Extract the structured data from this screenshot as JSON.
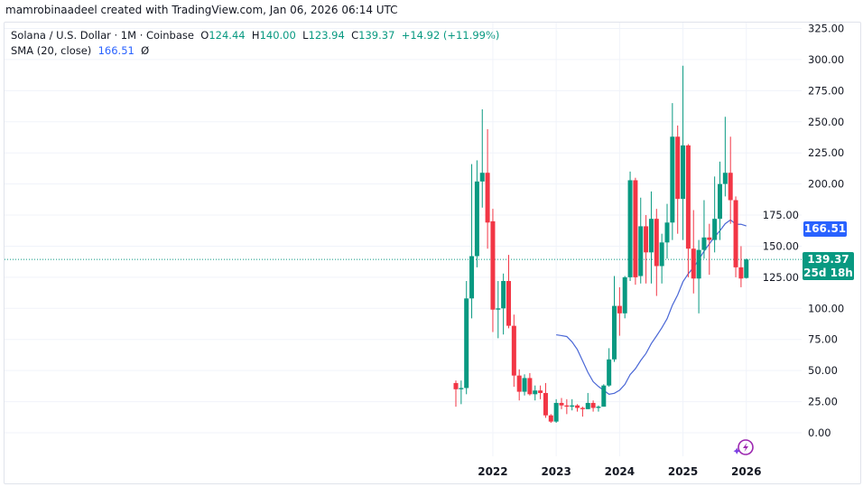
{
  "credit": "mamrobinaadeel created with TradingView.com, Jan 06, 2026 06:14 UTC",
  "legend": {
    "symbol": "Solana / U.S. Dollar · 1M · Coinbase",
    "o_label": "O",
    "o": "124.44",
    "h_label": "H",
    "h": "140.00",
    "l_label": "L",
    "l": "123.94",
    "c_label": "C",
    "c": "139.37",
    "change": "+14.92 (+11.99%)",
    "sma_label": "SMA (20, close)",
    "sma_value": "166.51",
    "sma_extra": "Ø"
  },
  "price_tags": {
    "sma": "166.51",
    "last": "139.37",
    "countdown": "25d 18h"
  },
  "colors": {
    "up": "#089981",
    "down": "#f23645",
    "sma": "#4a67d6",
    "sma_tag": "#2962ff",
    "grid": "#f0f3fa"
  },
  "icon": "tradingview-lightning-icon",
  "chart_data": {
    "type": "candlestick",
    "interval": "1M",
    "y_ticks": [
      "325.00",
      "300.00",
      "275.00",
      "250.00",
      "225.00",
      "200.00",
      "175.00",
      "150.00",
      "125.00",
      "100.00",
      "75.00",
      "50.00",
      "25.00",
      "0.00"
    ],
    "ylim": [
      0,
      325
    ],
    "x_ticks": [
      "2022",
      "2023",
      "2024",
      "2025",
      "2026"
    ],
    "grid": true,
    "overlay": {
      "name": "SMA (20, close)",
      "period": 20
    },
    "candles": [
      [
        "2021-06",
        40,
        42,
        21,
        35
      ],
      [
        "2021-07",
        35,
        42,
        23,
        36
      ],
      [
        "2021-08",
        36,
        122,
        31,
        108
      ],
      [
        "2021-09",
        108,
        216,
        92,
        142
      ],
      [
        "2021-10",
        142,
        219,
        133,
        202
      ],
      [
        "2021-11",
        202,
        260,
        181,
        209
      ],
      [
        "2021-12",
        209,
        244,
        148,
        169
      ],
      [
        "2022-01",
        170,
        180,
        81,
        99
      ],
      [
        "2022-02",
        99,
        122,
        76,
        100
      ],
      [
        "2022-03",
        100,
        128,
        79,
        122
      ],
      [
        "2022-04",
        122,
        143,
        84,
        86
      ],
      [
        "2022-05",
        86,
        95,
        37,
        46
      ],
      [
        "2022-06",
        46,
        51,
        26,
        33
      ],
      [
        "2022-07",
        33,
        47,
        30,
        44
      ],
      [
        "2022-08",
        44,
        48,
        30,
        31
      ],
      [
        "2022-09",
        31,
        38,
        26,
        34
      ],
      [
        "2022-10",
        34,
        38,
        27,
        32
      ],
      [
        "2022-11",
        32,
        40,
        12,
        14
      ],
      [
        "2022-12",
        14,
        15,
        8,
        9
      ],
      [
        "2023-01",
        9,
        27,
        8,
        24
      ],
      [
        "2023-02",
        24,
        28,
        19,
        22
      ],
      [
        "2023-03",
        22,
        27,
        15,
        21
      ],
      [
        "2023-04",
        21,
        27,
        18,
        22
      ],
      [
        "2023-05",
        22,
        23,
        17,
        20
      ],
      [
        "2023-06",
        20,
        21,
        13,
        19
      ],
      [
        "2023-07",
        19,
        32,
        19,
        24
      ],
      [
        "2023-08",
        24,
        26,
        17,
        20
      ],
      [
        "2023-09",
        20,
        22,
        17,
        21
      ],
      [
        "2023-10",
        21,
        39,
        21,
        38
      ],
      [
        "2023-11",
        38,
        68,
        37,
        59
      ],
      [
        "2023-12",
        59,
        126,
        57,
        102
      ],
      [
        "2024-01",
        102,
        117,
        78,
        96
      ],
      [
        "2024-02",
        96,
        126,
        92,
        125
      ],
      [
        "2024-03",
        125,
        210,
        122,
        203
      ],
      [
        "2024-04",
        203,
        205,
        119,
        125
      ],
      [
        "2024-05",
        126,
        189,
        120,
        166
      ],
      [
        "2024-06",
        166,
        175,
        120,
        145
      ],
      [
        "2024-07",
        145,
        194,
        120,
        172
      ],
      [
        "2024-08",
        172,
        180,
        110,
        134
      ],
      [
        "2024-09",
        134,
        160,
        120,
        153
      ],
      [
        "2024-10",
        153,
        184,
        140,
        169
      ],
      [
        "2024-11",
        169,
        265,
        155,
        238
      ],
      [
        "2024-12",
        238,
        247,
        160,
        188
      ],
      [
        "2025-01",
        188,
        295,
        155,
        231
      ],
      [
        "2025-02",
        231,
        232,
        125,
        148
      ],
      [
        "2025-03",
        148,
        179,
        112,
        124
      ],
      [
        "2025-04",
        124,
        155,
        96,
        147
      ],
      [
        "2025-05",
        147,
        187,
        140,
        157
      ],
      [
        "2025-06",
        157,
        168,
        127,
        155
      ],
      [
        "2025-07",
        155,
        206,
        145,
        172
      ],
      [
        "2025-08",
        172,
        218,
        155,
        200
      ],
      [
        "2025-09",
        200,
        254,
        190,
        209
      ],
      [
        "2025-10",
        209,
        238,
        168,
        187
      ],
      [
        "2025-11",
        187,
        190,
        125,
        133
      ],
      [
        "2025-12",
        133,
        150,
        117,
        124
      ],
      [
        "2026-01",
        124.44,
        140.0,
        123.94,
        139.37
      ]
    ]
  }
}
